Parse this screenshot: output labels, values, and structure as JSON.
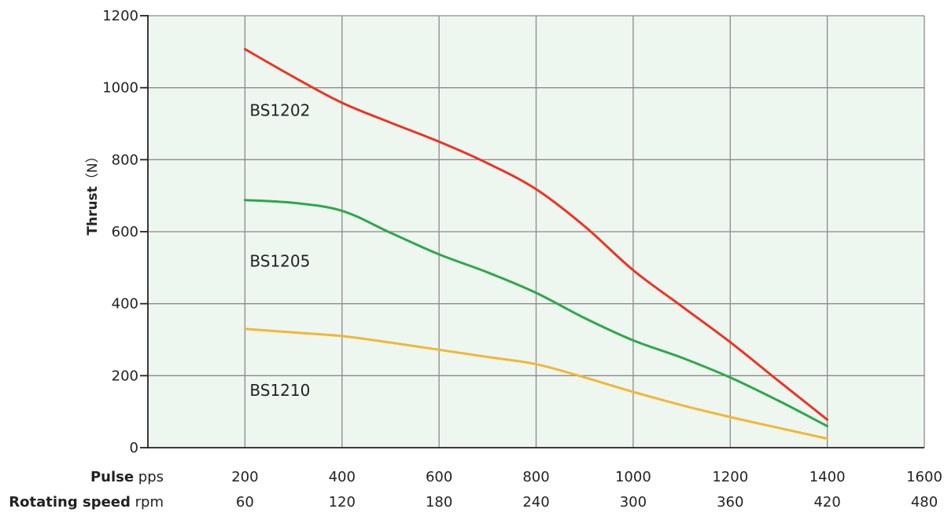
{
  "chart_data": {
    "type": "line",
    "ylabel_bold": "Thrust",
    "ylabel_unit": "（N）",
    "ylim": [
      0,
      1200
    ],
    "y_ticks": [
      "0",
      "200",
      "400",
      "600",
      "800",
      "1000",
      "1200"
    ],
    "xlim": [
      0,
      1600
    ],
    "x_rows": [
      {
        "label_bold": "Pulse",
        "label_unit": " pps",
        "ticks": [
          "200",
          "400",
          "600",
          "800",
          "1000",
          "1200",
          "1400",
          "1600"
        ]
      },
      {
        "label_bold": "Rotating speed",
        "label_unit": " rpm",
        "ticks": [
          "60",
          "120",
          "180",
          "240",
          "300",
          "360",
          "420",
          "480"
        ]
      }
    ],
    "grid": true,
    "plot_background": "#eef6f0",
    "series": [
      {
        "name": "BS1202",
        "color": "#ee3322",
        "x": [
          200,
          300,
          400,
          500,
          600,
          700,
          800,
          900,
          1000,
          1100,
          1200,
          1300,
          1400
        ],
        "y": [
          1107,
          1030,
          958,
          903,
          850,
          790,
          718,
          615,
          493,
          393,
          293,
          185,
          78
        ]
      },
      {
        "name": "BS1205",
        "color": "#2ea84a",
        "x": [
          200,
          300,
          400,
          500,
          600,
          700,
          800,
          900,
          1000,
          1100,
          1200,
          1300,
          1400
        ],
        "y": [
          688,
          680,
          658,
          597,
          537,
          487,
          430,
          360,
          298,
          250,
          195,
          130,
          60
        ]
      },
      {
        "name": "BS1210",
        "color": "#f2b733",
        "x": [
          200,
          300,
          400,
          500,
          600,
          700,
          800,
          900,
          1000,
          1100,
          1200,
          1300,
          1400
        ],
        "y": [
          330,
          320,
          310,
          292,
          272,
          252,
          232,
          195,
          155,
          118,
          85,
          55,
          25
        ]
      }
    ]
  }
}
